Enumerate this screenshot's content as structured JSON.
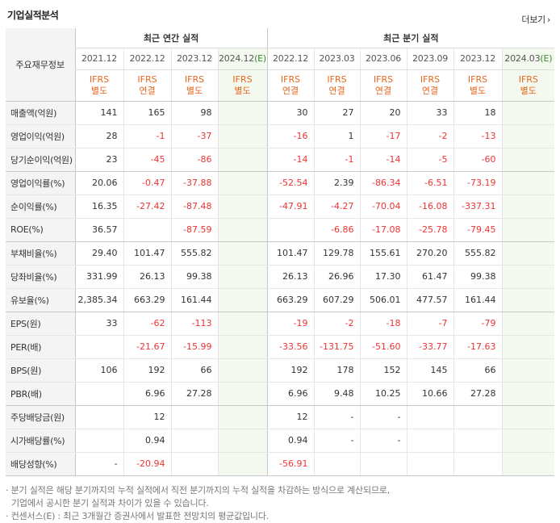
{
  "title": "기업실적분석",
  "more_label": "더보기",
  "header": {
    "row_label": "주요재무정보",
    "annual_group": "최근 연간 실적",
    "quarter_group": "최근 분기 실적",
    "periods": [
      "2021.12",
      "2022.12",
      "2023.12",
      "2024.12(E)",
      "2022.12",
      "2023.03",
      "2023.06",
      "2023.09",
      "2023.12",
      "2024.03(E)"
    ],
    "ifrs": [
      "IFRS",
      "IFRS",
      "IFRS",
      "IFRS",
      "IFRS",
      "IFRS",
      "IFRS",
      "IFRS",
      "IFRS",
      "IFRS"
    ],
    "basis": [
      "별도",
      "연결",
      "별도",
      "별도",
      "연결",
      "연결",
      "연결",
      "연결",
      "별도",
      "별도"
    ]
  },
  "rows": [
    {
      "label": "매출액(억원)",
      "values": [
        "141",
        "165",
        "98",
        "",
        "30",
        "27",
        "20",
        "33",
        "18",
        ""
      ]
    },
    {
      "label": "영업이익(억원)",
      "values": [
        "28",
        "-1",
        "-37",
        "",
        "-16",
        "1",
        "-17",
        "-2",
        "-13",
        ""
      ]
    },
    {
      "label": "당기순이익(억원)",
      "values": [
        "23",
        "-45",
        "-86",
        "",
        "-14",
        "-1",
        "-14",
        "-5",
        "-60",
        ""
      ]
    },
    {
      "label": "영업이익률(%)",
      "values": [
        "20.06",
        "-0.47",
        "-37.88",
        "",
        "-52.54",
        "2.39",
        "-86.34",
        "-6.51",
        "-73.19",
        ""
      ]
    },
    {
      "label": "순이익률(%)",
      "values": [
        "16.35",
        "-27.42",
        "-87.48",
        "",
        "-47.91",
        "-4.27",
        "-70.04",
        "-16.08",
        "-337.31",
        ""
      ]
    },
    {
      "label": "ROE(%)",
      "values": [
        "36.57",
        "",
        "-87.59",
        "",
        "",
        "-6.86",
        "-17.08",
        "-25.78",
        "-79.45",
        ""
      ]
    },
    {
      "label": "부채비율(%)",
      "values": [
        "29.40",
        "101.47",
        "555.82",
        "",
        "101.47",
        "129.78",
        "155.61",
        "270.20",
        "555.82",
        ""
      ]
    },
    {
      "label": "당좌비율(%)",
      "values": [
        "331.99",
        "26.13",
        "99.38",
        "",
        "26.13",
        "26.96",
        "17.30",
        "61.47",
        "99.38",
        ""
      ]
    },
    {
      "label": "유보율(%)",
      "values": [
        "2,385.34",
        "663.29",
        "161.44",
        "",
        "663.29",
        "607.29",
        "506.01",
        "477.57",
        "161.44",
        ""
      ]
    },
    {
      "label": "EPS(원)",
      "values": [
        "33",
        "-62",
        "-113",
        "",
        "-19",
        "-2",
        "-18",
        "-7",
        "-79",
        ""
      ]
    },
    {
      "label": "PER(배)",
      "values": [
        "",
        "-21.67",
        "-15.99",
        "",
        "-33.56",
        "-131.75",
        "-51.60",
        "-33.77",
        "-17.63",
        ""
      ]
    },
    {
      "label": "BPS(원)",
      "values": [
        "106",
        "192",
        "66",
        "",
        "192",
        "178",
        "152",
        "145",
        "66",
        ""
      ]
    },
    {
      "label": "PBR(배)",
      "values": [
        "",
        "6.96",
        "27.28",
        "",
        "6.96",
        "9.48",
        "10.25",
        "10.66",
        "27.28",
        ""
      ]
    },
    {
      "label": "주당배당금(원)",
      "values": [
        "",
        "12",
        "",
        "",
        "12",
        "-",
        "-",
        "",
        "",
        ""
      ]
    },
    {
      "label": "시가배당률(%)",
      "values": [
        "",
        "0.94",
        "",
        "",
        "0.94",
        "-",
        "-",
        "",
        "",
        ""
      ]
    },
    {
      "label": "배당성향(%)",
      "values": [
        "-",
        "-20.94",
        "",
        "",
        "-56.91",
        "",
        "",
        "",
        "",
        ""
      ]
    }
  ],
  "notes": {
    "line1": "· 분기 실적은 해당 분기까지의 누적 실적에서 직전 분기까지의 누적 실적을 차감하는 방식으로 계산되므로,",
    "line2": "기업에서 공시한 분기 실적과 차이가 있을 수 있습니다.",
    "line3": "· 컨센서스(E) : 최근 3개월간 증권사에서 발표한 전망치의 평균값입니다."
  }
}
